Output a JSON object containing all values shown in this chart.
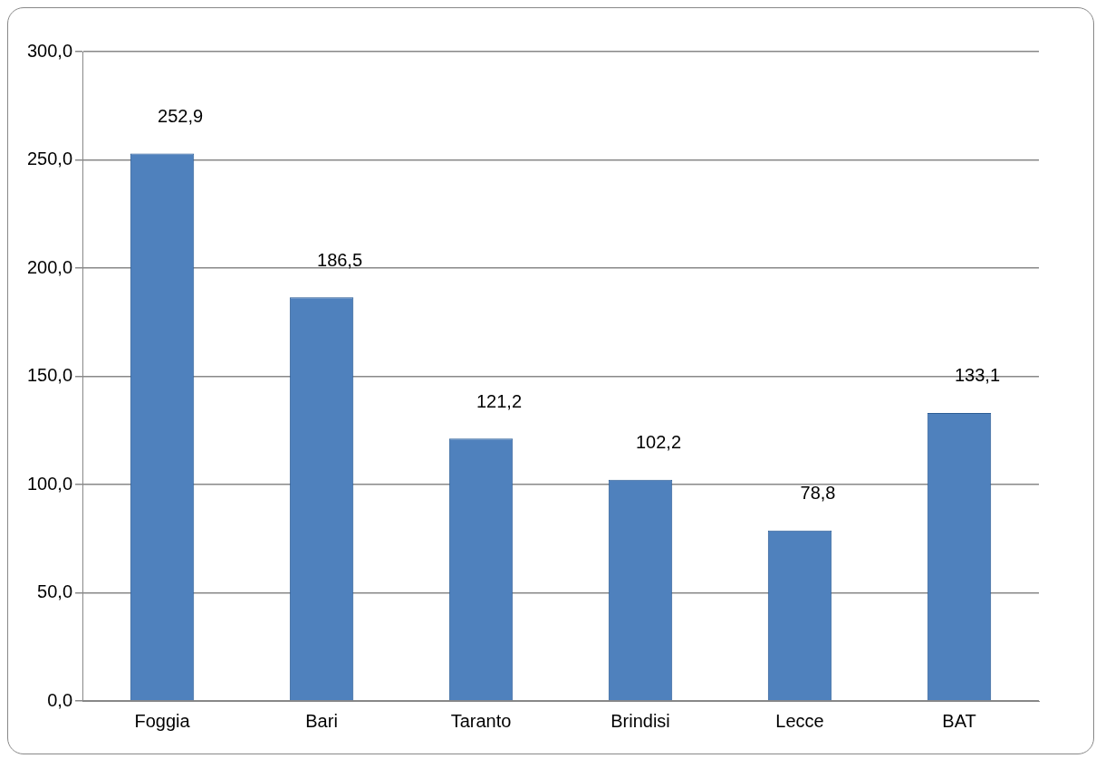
{
  "chart_data": {
    "type": "bar",
    "categories": [
      "Foggia",
      "Bari",
      "Taranto",
      "Brindisi",
      "Lecce",
      "BAT"
    ],
    "values": [
      252.9,
      186.5,
      121.2,
      102.2,
      78.8,
      133.1
    ],
    "value_labels": [
      "252,9",
      "186,5",
      "121,2",
      "102,2",
      "78,8",
      "133,1"
    ],
    "color": "#4f81bd",
    "ylim": [
      0,
      300
    ],
    "yticks": [
      {
        "value": 0,
        "label": "0,0"
      },
      {
        "value": 50,
        "label": "50,0"
      },
      {
        "value": 100,
        "label": "100,0"
      },
      {
        "value": 150,
        "label": "150,0"
      },
      {
        "value": 200,
        "label": "200,0"
      },
      {
        "value": 250,
        "label": "250,0"
      },
      {
        "value": 300,
        "label": "300,0"
      }
    ],
    "grid": "y",
    "legend": false
  }
}
